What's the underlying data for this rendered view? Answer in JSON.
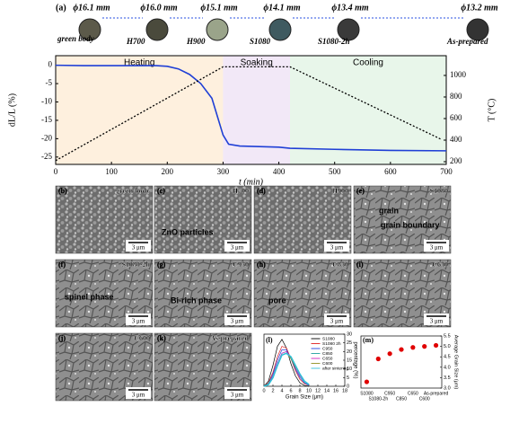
{
  "samples": [
    {
      "diameter": "ϕ16.1 mm",
      "stage": "green body",
      "color": "#5c5a4a"
    },
    {
      "diameter": "ϕ16.0 mm",
      "stage": "H700",
      "color": "#4a4a3c"
    },
    {
      "diameter": "ϕ15.1 mm",
      "stage": "H900",
      "color": "#9aa48a"
    },
    {
      "diameter": "ϕ14.1 mm",
      "stage": "S1080",
      "color": "#3f5a60"
    },
    {
      "diameter": "ϕ13.4 mm",
      "stage": "S1080-2h",
      "color": "#3a3a3a"
    },
    {
      "diameter": "ϕ13.2 mm",
      "stage": "As-prepared",
      "color": "#333333"
    }
  ],
  "chart_data": [
    {
      "type": "line",
      "label": "(a)",
      "xlabel": "t (min)",
      "ylabel": "dL/L (%)",
      "y2label": "T (°C)",
      "xlim": [
        0,
        700
      ],
      "xticks": [
        0,
        100,
        200,
        300,
        400,
        500,
        600,
        700
      ],
      "ylim": [
        -27,
        2.6
      ],
      "yticks": [
        0,
        -5,
        -10,
        -15,
        -20,
        -25
      ],
      "y2lim": [
        175,
        1183
      ],
      "y2ticks": [
        200,
        400,
        600,
        800,
        1000
      ],
      "stages": [
        {
          "name": "Heating",
          "range": [
            0,
            300
          ],
          "color": "#fde6c8",
          "label_color": "#f0a030"
        },
        {
          "name": "Soaking",
          "range": [
            300,
            420
          ],
          "color": "#ead8f2",
          "label_color": "#b04fc0"
        },
        {
          "name": "Cooling",
          "range": [
            420,
            700
          ],
          "color": "#d8f0dc",
          "label_color": "#2a9a4a"
        }
      ],
      "series": [
        {
          "x": [
            0,
            50,
            100,
            180,
            200,
            220,
            240,
            260,
            280,
            290,
            300,
            310,
            330,
            400,
            420,
            500,
            600,
            700
          ],
          "values": [
            0,
            -0.1,
            -0.1,
            -0.1,
            -0.3,
            -1,
            -2.5,
            -5,
            -9,
            -14,
            -19,
            -21.5,
            -22,
            -22.3,
            -22.6,
            -22.9,
            -23.2,
            -23.3
          ],
          "color": "#1f3fd6"
        },
        {
          "x": [
            0,
            300,
            420,
            690
          ],
          "values": [
            210,
            1080,
            1080,
            410
          ],
          "color": "#000000",
          "axis": "y2",
          "dash": true
        }
      ]
    },
    {
      "type": "line",
      "label": "(l)",
      "xlabel": "Grain Size (μm)",
      "ylabel": "percentage (%)",
      "xlim": [
        0,
        18
      ],
      "xticks": [
        0,
        2,
        4,
        6,
        8,
        10,
        12,
        14,
        16,
        18
      ],
      "ylim": [
        0,
        30
      ],
      "yticks": [
        0,
        5,
        10,
        15,
        20,
        25,
        30
      ],
      "x": [
        0,
        1,
        2,
        3,
        4,
        5,
        6,
        7,
        8,
        9,
        10
      ],
      "series": [
        {
          "name": "S1080",
          "color": "#000000",
          "values": [
            0,
            3,
            12,
            23,
            27,
            22,
            13,
            6,
            2,
            0.5,
            0
          ]
        },
        {
          "name": "S1080 2h",
          "color": "#e02020",
          "values": [
            0,
            2,
            8,
            17,
            23,
            22,
            16,
            9,
            4,
            1.5,
            0.5
          ]
        },
        {
          "name": "C950",
          "color": "#2040e0",
          "values": [
            0,
            1.5,
            7,
            15,
            21,
            21,
            16,
            10,
            5,
            2,
            0.5
          ]
        },
        {
          "name": "C850",
          "color": "#20a0a0",
          "values": [
            0,
            1.5,
            6,
            13,
            19,
            20,
            16,
            11,
            6,
            2.5,
            1
          ]
        },
        {
          "name": "C650",
          "color": "#d020c0",
          "values": [
            0,
            1,
            6,
            13,
            19,
            20,
            17,
            11,
            6,
            3,
            1
          ]
        },
        {
          "name": "C600",
          "color": "#909020",
          "values": [
            0,
            1,
            5,
            12,
            18,
            19,
            16,
            11,
            7,
            3,
            1
          ]
        },
        {
          "name": "after sintering",
          "color": "#30c0d8",
          "values": [
            0,
            1,
            5,
            12,
            18,
            19,
            17,
            12,
            7,
            3,
            1
          ]
        }
      ]
    },
    {
      "type": "scatter",
      "label": "(m)",
      "ylabel": "Average Grain Size (μm)",
      "categories": [
        "S1080",
        "S1080-2h",
        "C950",
        "C850",
        "C650",
        "C600",
        "As-prepared"
      ],
      "values": [
        3.3,
        4.4,
        4.65,
        4.85,
        4.95,
        5.0,
        5.05
      ],
      "color": "#e00000",
      "ylim": [
        3.0,
        5.5
      ],
      "yticks": [
        {
          "value": 3,
          "label": "3.0"
        },
        3.5,
        {
          "value": 4,
          "label": "4.0"
        },
        4.5,
        {
          "value": 5,
          "label": "5.0"
        },
        5.5
      ]
    }
  ],
  "panels": [
    {
      "label": "(b)",
      "title": "green body",
      "scale": "3 μm",
      "notes": []
    },
    {
      "label": "(c)",
      "title": "H700",
      "scale": "3 μm",
      "notes": [
        "ZnO particles"
      ]
    },
    {
      "label": "(d)",
      "title": "H900",
      "scale": "3 μm",
      "notes": []
    },
    {
      "label": "(e)",
      "title": "S1080",
      "scale": "3 μm",
      "notes": [
        "grain",
        "grain boundary"
      ]
    },
    {
      "label": "(f)",
      "title": "S1080-2h",
      "scale": "3 μm",
      "notes": [
        "spinel phase"
      ]
    },
    {
      "label": "(g)",
      "title": "C950",
      "scale": "3 μm",
      "notes": [
        "Bi-rich phase"
      ]
    },
    {
      "label": "(h)",
      "title": "C850",
      "scale": "3 μm",
      "notes": [
        "pore"
      ]
    },
    {
      "label": "(i)",
      "title": "C650",
      "scale": "3 μm",
      "notes": []
    },
    {
      "label": "(j)",
      "title": "C600",
      "scale": "3 μm",
      "notes": []
    },
    {
      "label": "(k)",
      "title": "As-prepared",
      "scale": "3 μm",
      "notes": []
    }
  ]
}
